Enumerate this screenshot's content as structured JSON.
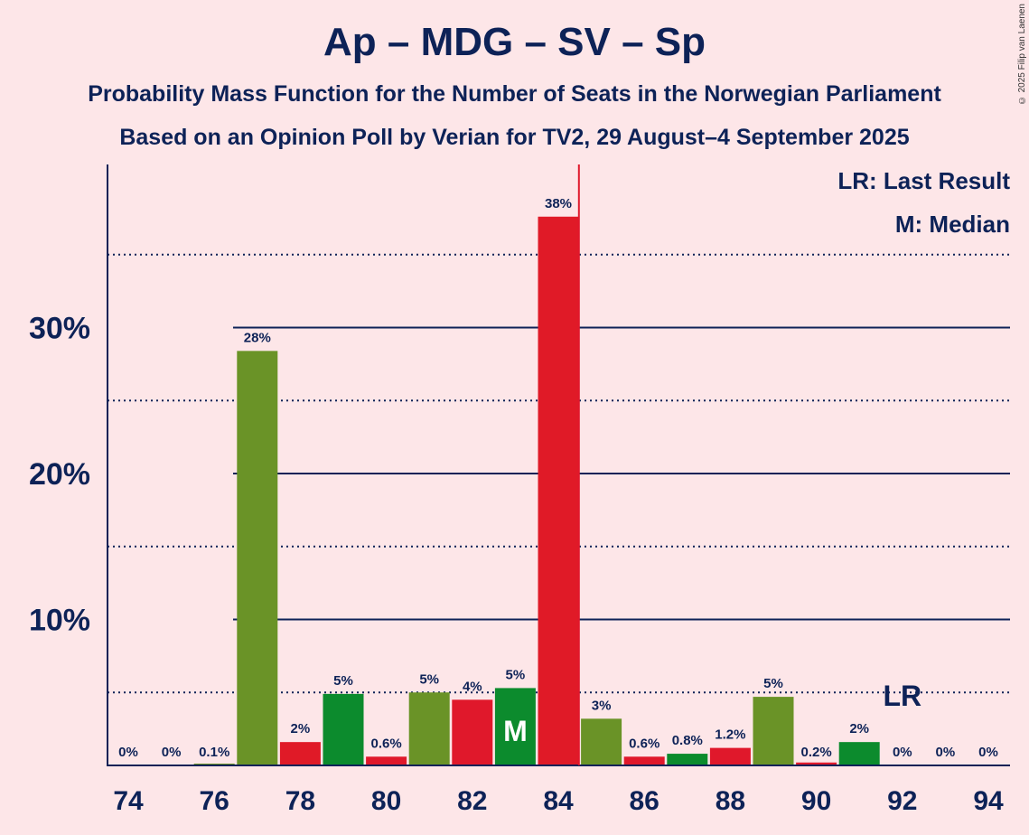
{
  "title": "Ap – MDG – SV – Sp",
  "subtitle1": "Probability Mass Function for the Number of Seats in the Norwegian Parliament",
  "subtitle2": "Based on an Opinion Poll by Verian for TV2, 29 August–4 September 2025",
  "copyright": "© 2025 Filip van Laenen",
  "legend": {
    "last_result": "LR: Last Result",
    "median": "M: Median"
  },
  "colors": {
    "background": "#fde6e8",
    "text": "#0d2257",
    "green": "#6a9327",
    "red": "#e01a27",
    "dark_green": "#0c8b2d",
    "dark_red": "#e0182b",
    "majority_line": "#e0182b"
  },
  "chart_data": {
    "type": "bar",
    "x": [
      74,
      75,
      76,
      77,
      78,
      79,
      80,
      81,
      82,
      83,
      84,
      85,
      86,
      87,
      88,
      89,
      90,
      91,
      92,
      93,
      94
    ],
    "values": [
      0,
      0,
      0.1,
      28.4,
      1.6,
      4.9,
      0.6,
      5.0,
      4.5,
      5.3,
      37.6,
      3.2,
      0.6,
      0.8,
      1.2,
      4.7,
      0.2,
      1.6,
      0,
      0,
      0
    ],
    "labels": [
      "0%",
      "0%",
      "0.1%",
      "28%",
      "2%",
      "5%",
      "0.6%",
      "5%",
      "4%",
      "5%",
      "38%",
      "3%",
      "0.6%",
      "0.8%",
      "1.2%",
      "5%",
      "0.2%",
      "2%",
      "0%",
      "0%",
      "0%"
    ],
    "bar_colors": [
      "green",
      "red",
      "green",
      "green",
      "red",
      "dark_green",
      "dark_red",
      "green",
      "dark_red",
      "dark_green",
      "red",
      "green",
      "dark_red",
      "dark_green",
      "dark_red",
      "green",
      "dark_red",
      "dark_green",
      "green",
      "green",
      "green"
    ],
    "x_ticks": [
      "74",
      "76",
      "78",
      "80",
      "82",
      "84",
      "86",
      "88",
      "90",
      "92",
      "94"
    ],
    "y_ticks": [
      {
        "value": 10,
        "label": "10%"
      },
      {
        "value": 20,
        "label": "20%"
      },
      {
        "value": 30,
        "label": "30%"
      }
    ],
    "minor_gridlines": [
      5,
      15,
      25,
      35
    ],
    "ylim": [
      0,
      41
    ],
    "median": 83,
    "median_label": "M",
    "last_result": 92,
    "last_result_label": "LR",
    "majority_after": 84
  }
}
